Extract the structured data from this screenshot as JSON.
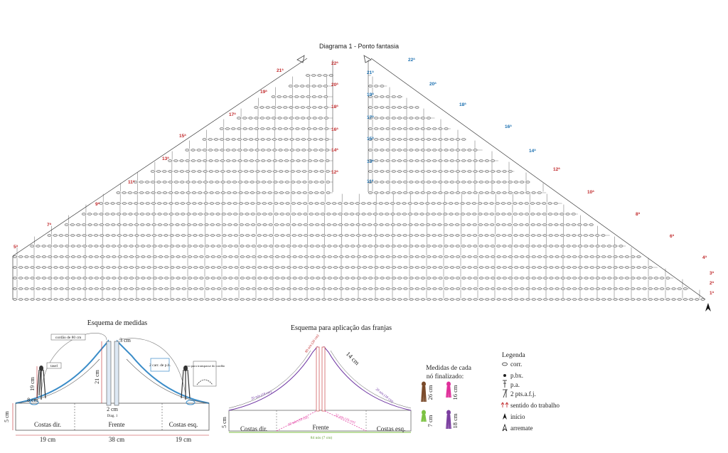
{
  "diagram1": {
    "title": "Diagrama 1 - Ponto fantasia",
    "rows_left": [
      "1ª",
      "2ª",
      "3ª",
      "4ª",
      "5ª",
      "6ª",
      "7ª",
      "8ª",
      "9ª",
      "10ª",
      "11ª",
      "12ª",
      "13ª",
      "14ª",
      "15ª",
      "16ª",
      "17ª",
      "18ª",
      "19ª",
      "20ª",
      "21ª",
      "22ª"
    ],
    "rows_right": [
      "1ª",
      "2ª",
      "3ª",
      "4ª",
      "5ª",
      "6ª",
      "7ª",
      "8ª",
      "9ª",
      "10ª",
      "11ª",
      "12ª",
      "13ª",
      "14ª",
      "15ª",
      "16ª",
      "17ª",
      "18ª",
      "19ª",
      "20ª",
      "21ª",
      "22ª"
    ]
  },
  "measures": {
    "title": "Esquema de medidas",
    "cord_label": "cordão de 80 cm",
    "tassel_label": "tasel",
    "carr_label": "2 carr. de p.b.",
    "arc_label": "arco para transpasse do cordão",
    "sections": [
      "Costas dir.",
      "Frente",
      "Costas esq."
    ],
    "dims": {
      "h19": "19 cm",
      "h21": "21 cm",
      "w8": "8 cm",
      "w3": "3 cm",
      "w2": "2 cm",
      "h5": "5 cm",
      "bottom_left": "19 cm",
      "bottom_mid": "38 cm",
      "bottom_right": "19 cm"
    },
    "diag_note": "Diag. 1"
  },
  "fringes": {
    "title": "Esquema para aplicação das franjas",
    "top_label": "80 nós (26 cm)",
    "side_left": "20 nós (18 cm)",
    "side_right": "20 nós (18 cm)",
    "mid_left": "32 nós (16 cm)",
    "mid_right": "32 nós (16 cm)",
    "bottom": "84 nós (7 cm)",
    "h14": "14 cm",
    "h5": "5 cm",
    "sections": [
      "Costas dir.",
      "Frente",
      "Costas esq."
    ]
  },
  "knots": {
    "title_line1": "Medidas de cada",
    "title_line2": "nó finalizado:",
    "items": [
      {
        "label": "26 cm",
        "color": "#7a4a2a"
      },
      {
        "label": "16 cm",
        "color": "#e0309a"
      },
      {
        "label": "7 cm",
        "color": "#7cc242"
      },
      {
        "label": "18 cm",
        "color": "#7b3fa0"
      }
    ]
  },
  "legend": {
    "title": "Legenda",
    "items": [
      {
        "sym": "oval",
        "text": "corr."
      },
      {
        "sym": "dot",
        "text": "p.bx."
      },
      {
        "sym": "pa",
        "text": "p.a."
      },
      {
        "sym": "pts",
        "text": "2 pts.a.f.j."
      },
      {
        "sym": "arrows",
        "text": "sentido do trabalho"
      },
      {
        "sym": "start",
        "text": "início"
      },
      {
        "sym": "end",
        "text": "arremate"
      }
    ]
  },
  "colors": {
    "ink": "#333333",
    "red": "#c0282a",
    "blue": "#1a6fb0",
    "shawl": "#3a8cc8",
    "fringe_top": "#c0282a",
    "fringe_side": "#6a2fa0",
    "fringe_mid": "#e0309a",
    "fringe_bottom": "#7cc242"
  }
}
